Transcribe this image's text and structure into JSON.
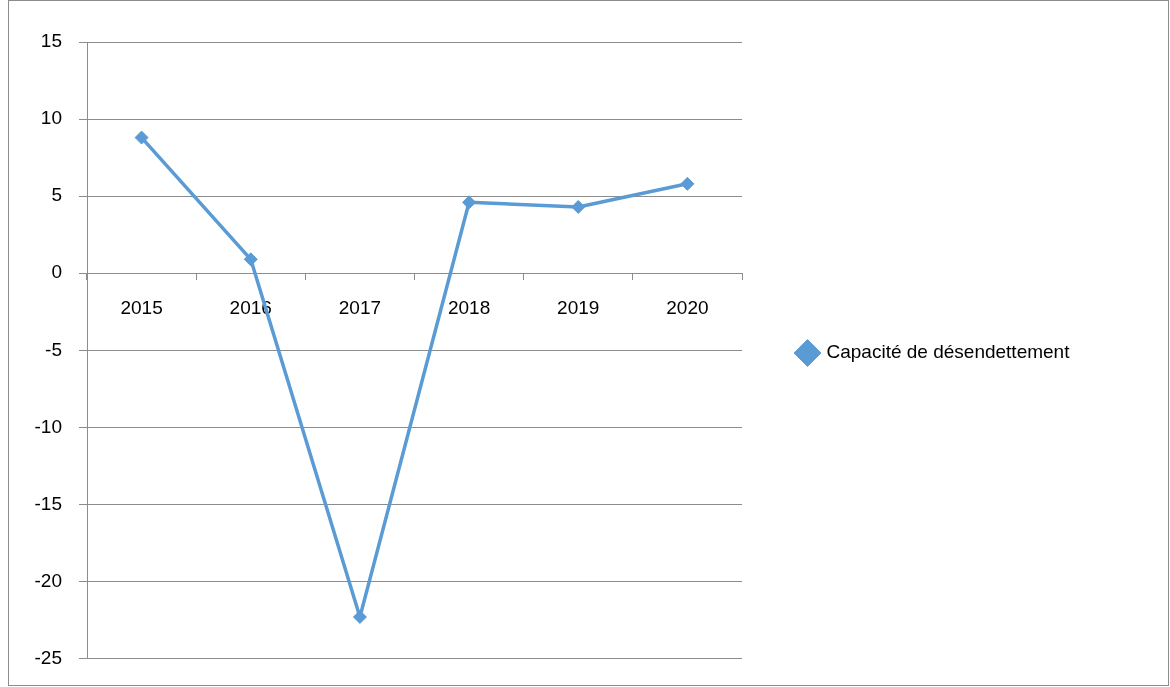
{
  "chart_data": {
    "type": "line",
    "categories": [
      "2015",
      "2016",
      "2017",
      "2018",
      "2019",
      "2020"
    ],
    "series": [
      {
        "name": "Capacité de désendettement",
        "color": "#5b9bd5",
        "values": [
          8.8,
          0.9,
          -22.3,
          4.6,
          4.3,
          5.8
        ]
      }
    ],
    "ylim": [
      -25,
      15
    ],
    "yticks": [
      -25,
      -20,
      -15,
      -10,
      -5,
      0,
      5,
      10,
      15
    ],
    "grid": "y",
    "legend": "right",
    "marker": "diamond",
    "line_style": "solid"
  }
}
